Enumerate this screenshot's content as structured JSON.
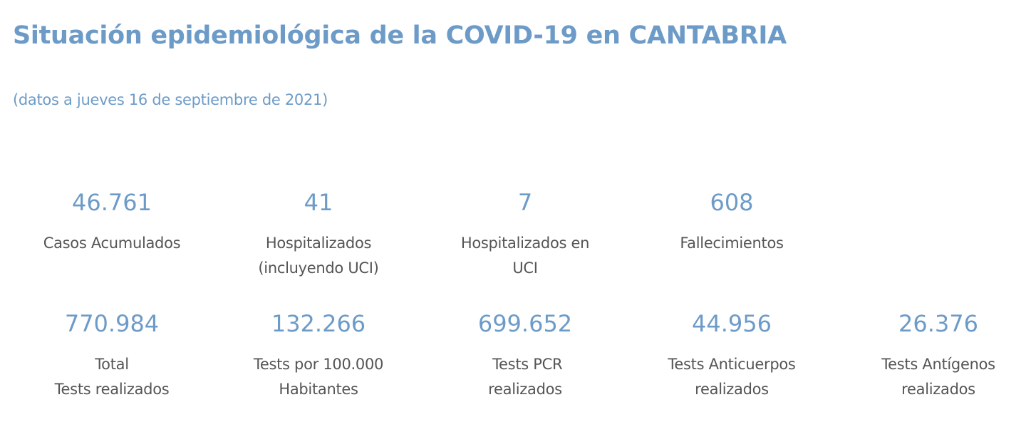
{
  "header": {
    "title": "Situación epidemiológica de la COVID-19 en CANTABRIA",
    "subtitle": "(datos a jueves 16 de septiembre de 2021)"
  },
  "row1": [
    {
      "value": "46.761",
      "label": "Casos Acumulados"
    },
    {
      "value": "41",
      "label": "Hospitalizados\n(incluyendo UCI)"
    },
    {
      "value": "7",
      "label": "Hospitalizados en\nUCI"
    },
    {
      "value": "608",
      "label": "Fallecimientos"
    }
  ],
  "row2": [
    {
      "value": "770.984",
      "label": "Total\nTests realizados"
    },
    {
      "value": "132.266",
      "label": "Tests por 100.000\nHabitantes"
    },
    {
      "value": "699.652",
      "label": " Tests PCR\nrealizados"
    },
    {
      "value": "44.956",
      "label": "Tests Anticuerpos\nrealizados"
    },
    {
      "value": "26.376",
      "label": "Tests Antígenos\nrealizados"
    }
  ],
  "colors": {
    "accent": "#6d9bc8",
    "label": "#555555"
  }
}
